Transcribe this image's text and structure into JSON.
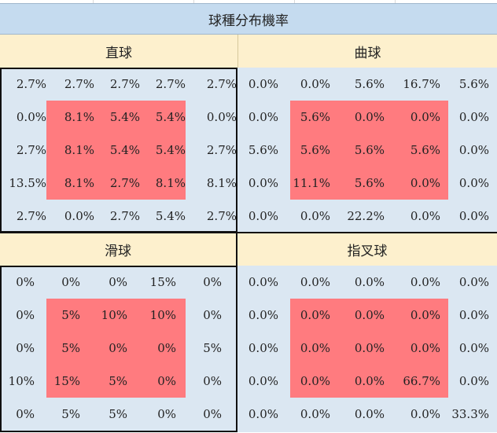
{
  "title": "球種分布機率",
  "quadrants": [
    {
      "name": "直球",
      "rows": [
        [
          "2.7%",
          "2.7%",
          "2.7%",
          "2.7%",
          "2.7%"
        ],
        [
          "0.0%",
          "8.1%",
          "5.4%",
          "5.4%",
          "0.0%"
        ],
        [
          "2.7%",
          "8.1%",
          "5.4%",
          "5.4%",
          "2.7%"
        ],
        [
          "13.5%",
          "8.1%",
          "2.7%",
          "8.1%",
          "8.1%"
        ],
        [
          "2.7%",
          "0.0%",
          "2.7%",
          "5.4%",
          "2.7%"
        ]
      ]
    },
    {
      "name": "曲球",
      "rows": [
        [
          "0.0%",
          "0.0%",
          "5.6%",
          "16.7%",
          "5.6%"
        ],
        [
          "0.0%",
          "5.6%",
          "0.0%",
          "0.0%",
          "0.0%"
        ],
        [
          "5.6%",
          "5.6%",
          "5.6%",
          "5.6%",
          "0.0%"
        ],
        [
          "0.0%",
          "11.1%",
          "5.6%",
          "0.0%",
          "0.0%"
        ],
        [
          "0.0%",
          "0.0%",
          "22.2%",
          "0.0%",
          "0.0%"
        ]
      ]
    },
    {
      "name": "滑球",
      "rows": [
        [
          "0%",
          "0%",
          "0%",
          "15%",
          "0%"
        ],
        [
          "0%",
          "5%",
          "10%",
          "10%",
          "0%"
        ],
        [
          "0%",
          "5%",
          "0%",
          "0%",
          "5%"
        ],
        [
          "10%",
          "15%",
          "5%",
          "0%",
          "0%"
        ],
        [
          "0%",
          "5%",
          "5%",
          "0%",
          "0%"
        ]
      ]
    },
    {
      "name": "指叉球",
      "rows": [
        [
          "0.0%",
          "0.0%",
          "0.0%",
          "0.0%",
          "0.0%"
        ],
        [
          "0.0%",
          "0.0%",
          "0.0%",
          "0.0%",
          "0.0%"
        ],
        [
          "0.0%",
          "0.0%",
          "0.0%",
          "0.0%",
          "0.0%"
        ],
        [
          "0.0%",
          "0.0%",
          "0.0%",
          "66.7%",
          "0.0%"
        ],
        [
          "0.0%",
          "0.0%",
          "0.0%",
          "0.0%",
          "33.3%"
        ]
      ]
    }
  ],
  "colors": {
    "title_bg": "#c5dbef",
    "header_bg": "#fdf0cd",
    "body_bg": "#dbe7f2",
    "strike_zone": "#ff7b7f"
  }
}
